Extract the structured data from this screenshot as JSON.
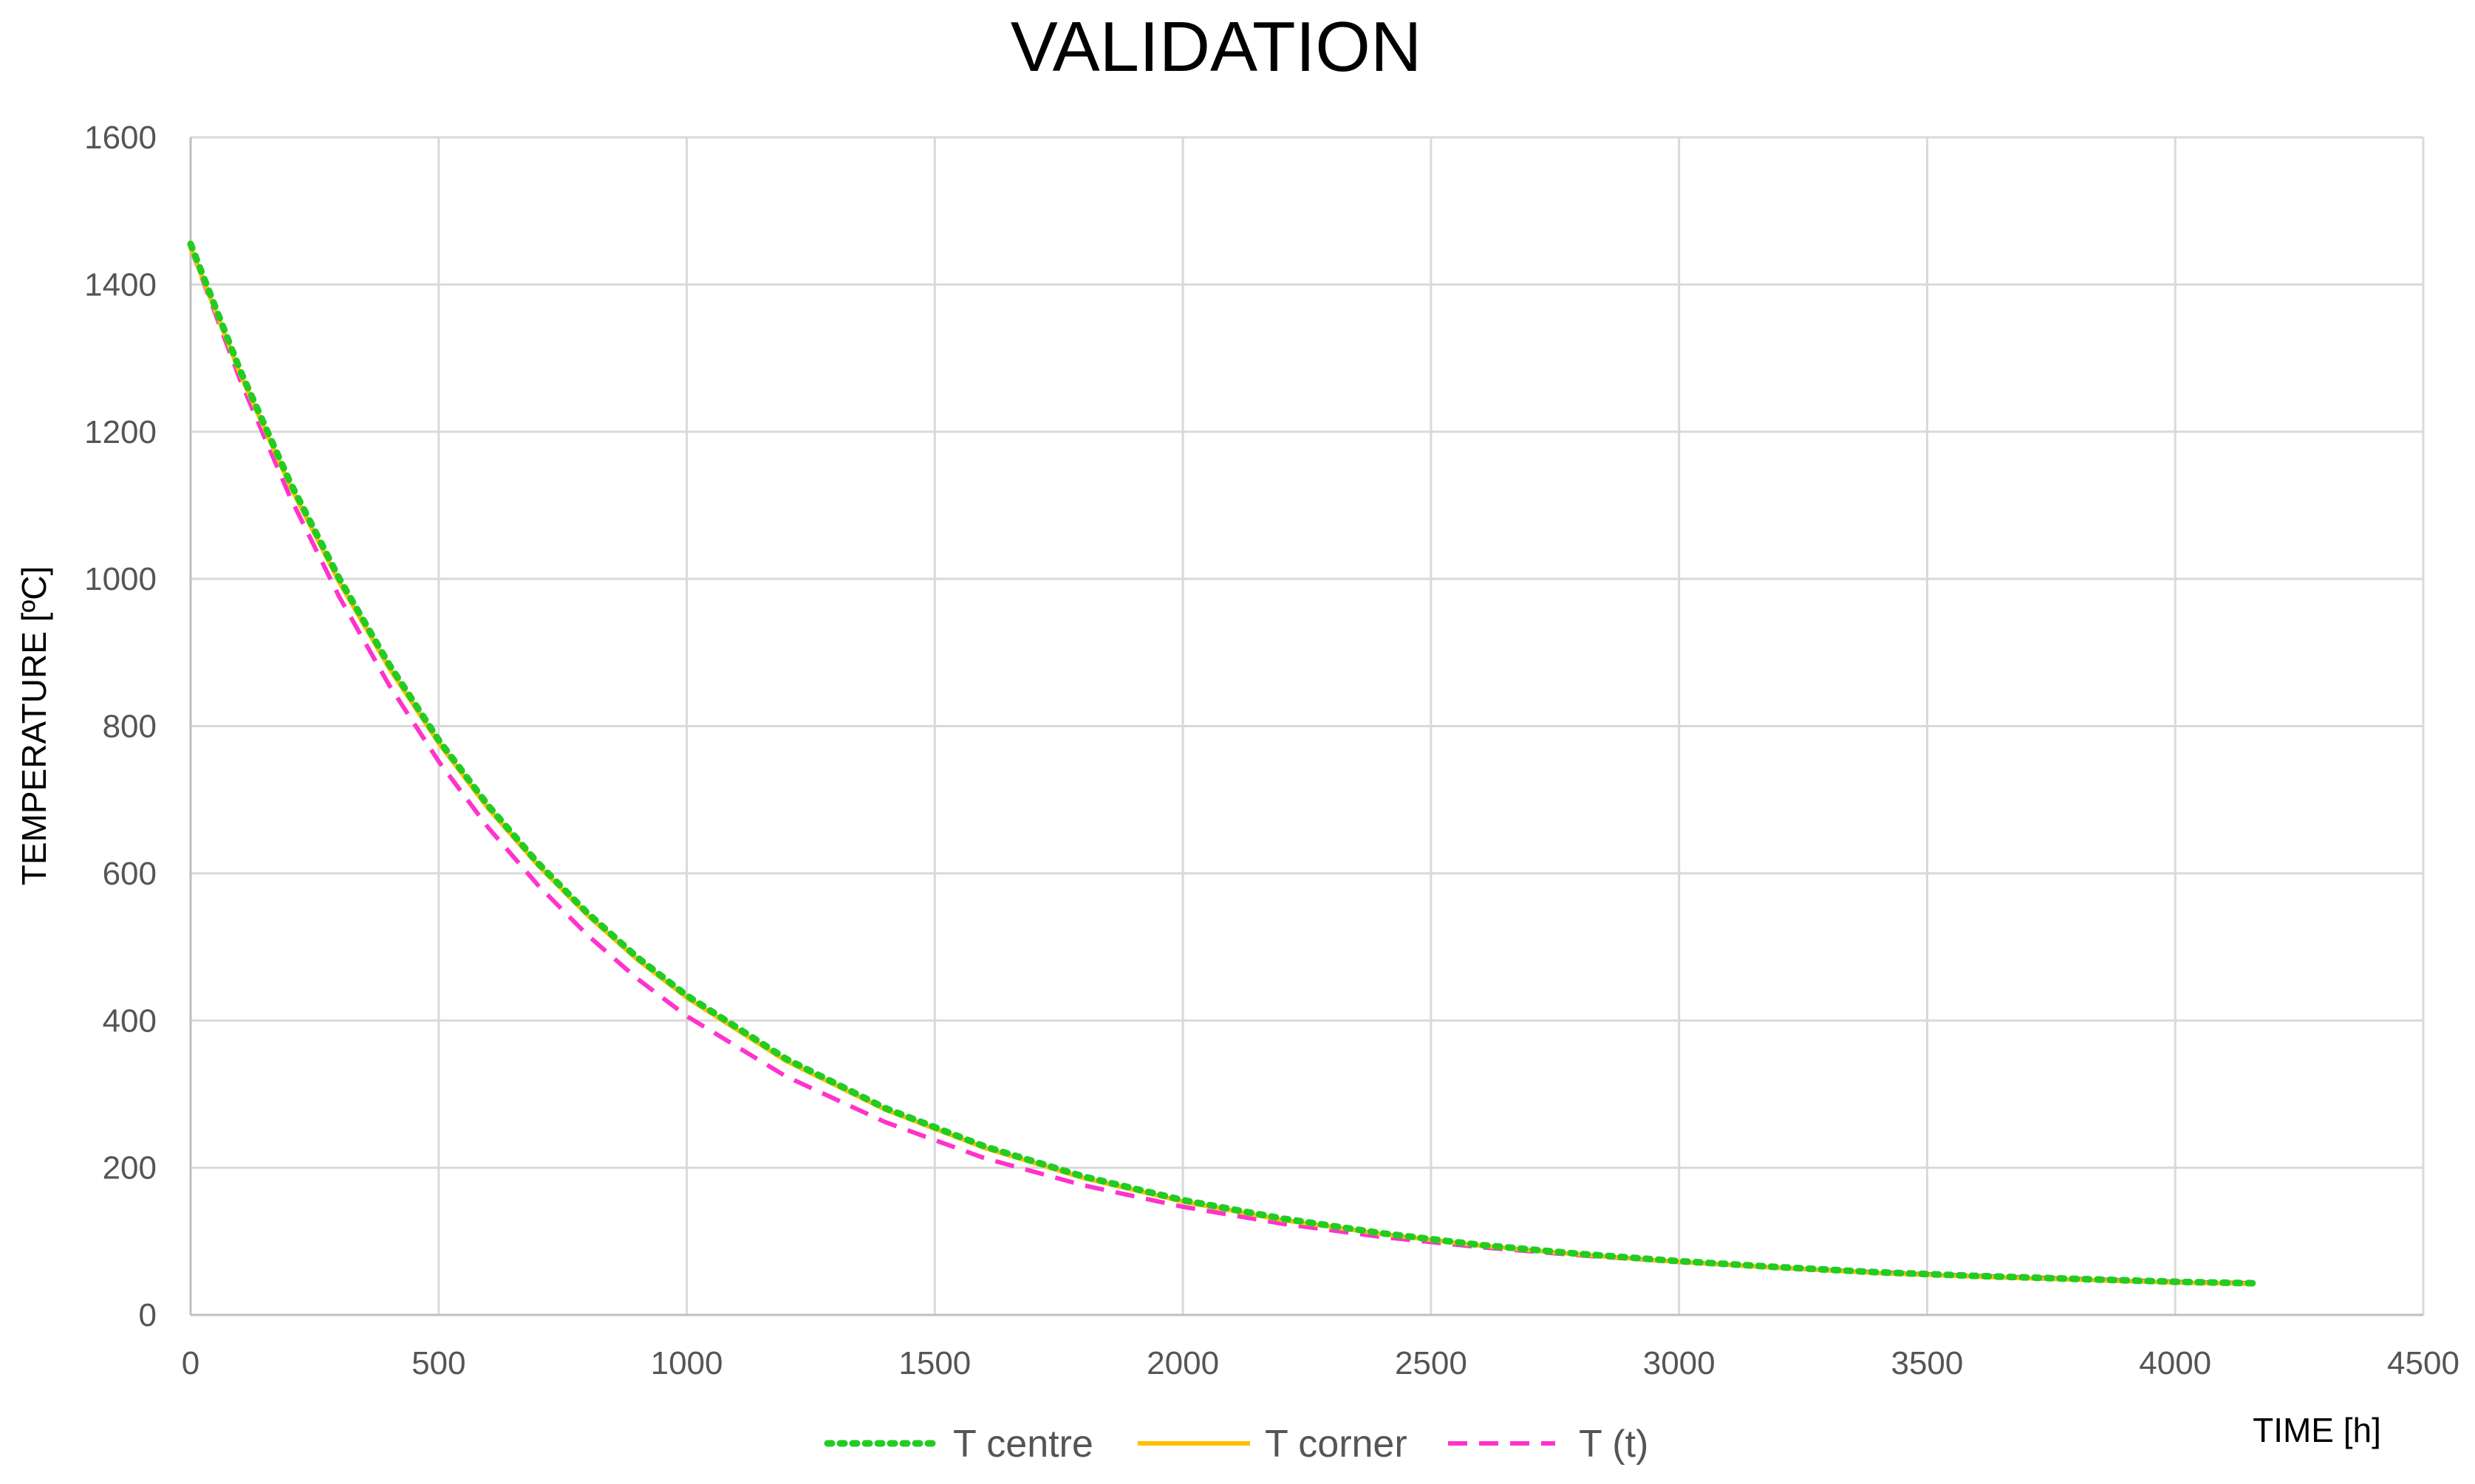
{
  "chart_data": {
    "type": "line",
    "title": "VALIDATION",
    "xlabel": "TIME [h]",
    "ylabel": "TEMPERATURE [ºC]",
    "xlim": [
      0,
      4500
    ],
    "ylim": [
      0,
      1600
    ],
    "x_ticks": [
      0,
      500,
      1000,
      1500,
      2000,
      2500,
      3000,
      3500,
      4000,
      4500
    ],
    "y_ticks": [
      0,
      200,
      400,
      600,
      800,
      1000,
      1200,
      1400,
      1600
    ],
    "grid": true,
    "legend_position": "bottom",
    "x": [
      0,
      100,
      200,
      300,
      400,
      500,
      600,
      700,
      800,
      900,
      1000,
      1200,
      1400,
      1600,
      1800,
      2000,
      2200,
      2400,
      2600,
      2800,
      3000,
      3200,
      3400,
      3600,
      3800,
      4000,
      4160
    ],
    "series": [
      {
        "name": "T centre",
        "color": "#22cc22",
        "style": "dotted",
        "values": [
          1455,
          1283,
          1132,
          1000,
          884,
          781,
          692,
          614,
          546,
          486,
          434,
          348,
          281,
          229,
          188,
          156,
          131,
          111,
          95,
          83,
          73,
          65,
          58,
          53,
          49,
          45,
          43
        ]
      },
      {
        "name": "T corner",
        "color": "#ffc000",
        "style": "solid",
        "values": [
          1450,
          1278,
          1127,
          995,
          879,
          777,
          688,
          611,
          543,
          483,
          431,
          345,
          279,
          227,
          186,
          154,
          129,
          110,
          94,
          82,
          72,
          64,
          57,
          52,
          48,
          44,
          42
        ]
      },
      {
        "name": "T (t)",
        "color": "#ff33cc",
        "style": "dashed",
        "values": [
          1450,
          1270,
          1112,
          975,
          856,
          752,
          662,
          584,
          516,
          457,
          406,
          324,
          262,
          213,
          176,
          147,
          124,
          106,
          92,
          81,
          72,
          64,
          58,
          53,
          49,
          45,
          43
        ]
      }
    ]
  }
}
